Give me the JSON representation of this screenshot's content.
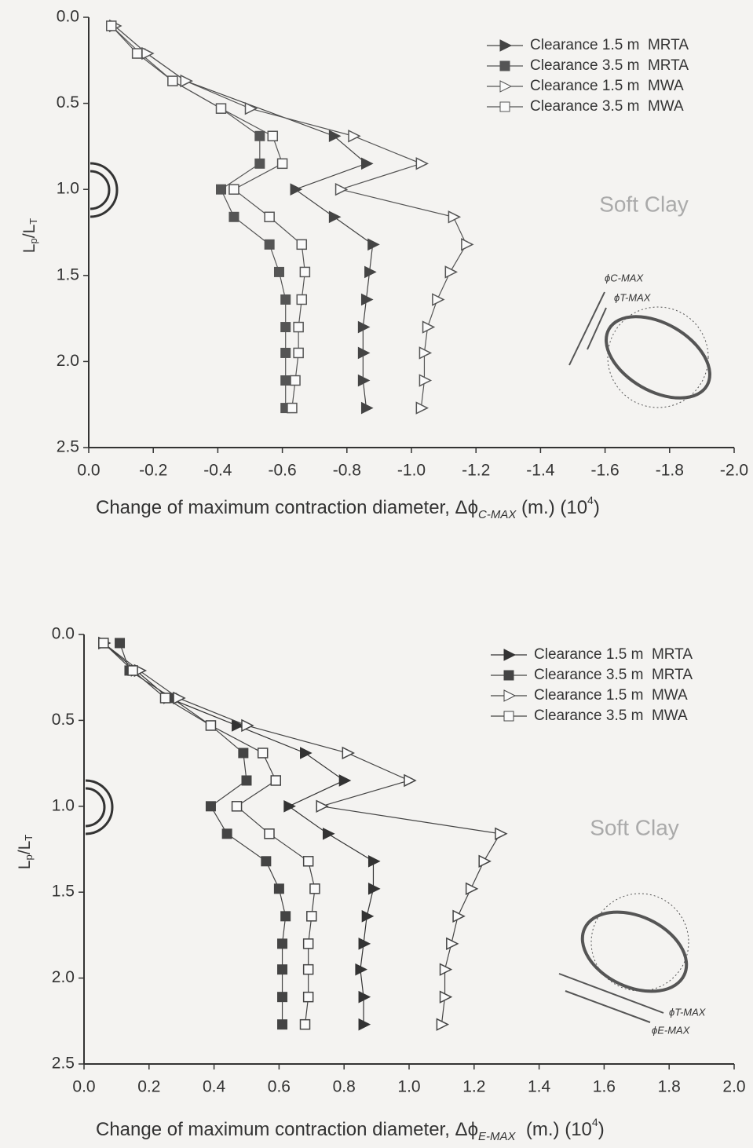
{
  "chart_data": [
    {
      "type": "line",
      "orientation": "horizontal",
      "xlabel": {
        "main": "Change of maximum contraction diameter, Δϕ",
        "sub": "C-MAX",
        "unit": " (m.) (10",
        "sup": "4",
        "end": ")"
      },
      "ylabel": {
        "main": "L",
        "sub": "p",
        "mid": "/L",
        "sub2": "T"
      },
      "annotation": "Soft Clay",
      "diagram_labels": [
        "ϕC-MAX",
        "ϕT-MAX"
      ],
      "xlim": [
        0,
        -2
      ],
      "xticks": [
        {
          "value": 0,
          "label": "0.0"
        },
        -0.2,
        -0.4,
        -0.6,
        -0.8,
        {
          "value": -1,
          "label": "-1.0"
        },
        -1.2,
        -1.4,
        -1.6,
        -1.8,
        {
          "value": -2,
          "label": "-2.0"
        }
      ],
      "ylim": [
        0,
        2.5
      ],
      "yticks": [
        {
          "value": 0,
          "label": "0.0"
        },
        0.5,
        {
          "value": 1,
          "label": "1.0"
        },
        1.5,
        {
          "value": 2,
          "label": "2.0"
        },
        2.5
      ],
      "legend": "upper right",
      "series": [
        {
          "name": "Clearance 1.5 m  MRTA",
          "color": "#444444",
          "marker": "triangle",
          "filled": true,
          "y": [
            0.05,
            0.21,
            0.37,
            0.69,
            0.85,
            1.0,
            1.16,
            1.32,
            1.48,
            1.64,
            1.8,
            1.95,
            2.11,
            2.27
          ],
          "values": [
            -0.08,
            -0.18,
            -0.3,
            -0.76,
            -0.86,
            -0.64,
            -0.76,
            -0.88,
            -0.87,
            -0.86,
            -0.85,
            -0.85,
            -0.85,
            -0.86
          ]
        },
        {
          "name": "Clearance 3.5 m  MRTA",
          "color": "#555555",
          "marker": "square",
          "filled": true,
          "y": [
            0.05,
            0.21,
            0.37,
            0.53,
            0.69,
            0.85,
            1.0,
            1.16,
            1.32,
            1.48,
            1.64,
            1.8,
            1.95,
            2.11,
            2.27
          ],
          "values": [
            -0.07,
            -0.16,
            -0.26,
            -0.41,
            -0.53,
            -0.53,
            -0.41,
            -0.45,
            -0.56,
            -0.59,
            -0.61,
            -0.61,
            -0.61,
            -0.61,
            -0.61
          ]
        },
        {
          "name": "Clearance 1.5 m  MWA",
          "color": "#555555",
          "marker": "triangle",
          "filled": false,
          "y": [
            0.05,
            0.21,
            0.37,
            0.53,
            0.69,
            0.85,
            1.0,
            1.16,
            1.32,
            1.48,
            1.64,
            1.8,
            1.95,
            2.11,
            2.27
          ],
          "values": [
            -0.08,
            -0.18,
            -0.3,
            -0.5,
            -0.82,
            -1.03,
            -0.78,
            -1.13,
            -1.17,
            -1.12,
            -1.08,
            -1.05,
            -1.04,
            -1.04,
            -1.03
          ]
        },
        {
          "name": "Clearance 3.5 m  MWA",
          "color": "#555555",
          "marker": "square",
          "filled": false,
          "y": [
            0.05,
            0.21,
            0.37,
            0.53,
            0.69,
            0.85,
            1.0,
            1.16,
            1.32,
            1.48,
            1.64,
            1.8,
            1.95,
            2.11,
            2.27
          ],
          "values": [
            -0.07,
            -0.15,
            -0.26,
            -0.41,
            -0.57,
            -0.6,
            -0.45,
            -0.56,
            -0.66,
            -0.67,
            -0.66,
            -0.65,
            -0.65,
            -0.64,
            -0.63
          ]
        }
      ]
    },
    {
      "type": "line",
      "orientation": "horizontal",
      "xlabel": {
        "main": "Change of maximum contraction diameter, Δϕ",
        "sub": "E-MAX",
        "unit": "  (m.) (10",
        "sup": "4",
        "end": ")"
      },
      "ylabel": {
        "main": "L",
        "sub": "p",
        "mid": "/L",
        "sub2": "T"
      },
      "annotation": "Soft Clay",
      "diagram_labels": [
        "ϕT-MAX",
        "ϕE-MAX"
      ],
      "xlim": [
        0,
        2
      ],
      "xticks": [
        {
          "value": 0,
          "label": "0.0"
        },
        0.2,
        0.4,
        0.6,
        0.8,
        {
          "value": 1,
          "label": "1.0"
        },
        1.2,
        1.4,
        1.6,
        1.8,
        {
          "value": 2,
          "label": "2.0"
        }
      ],
      "ylim": [
        0,
        2.5
      ],
      "yticks": [
        {
          "value": 0,
          "label": "0.0"
        },
        0.5,
        {
          "value": 1,
          "label": "1.0"
        },
        1.5,
        {
          "value": 2,
          "label": "2.0"
        },
        2.5
      ],
      "legend": "upper right",
      "series": [
        {
          "name": "Clearance 1.5 m  MRTA",
          "color": "#333333",
          "marker": "triangle",
          "filled": true,
          "y": [
            0.05,
            0.21,
            0.37,
            0.53,
            0.69,
            0.85,
            1.0,
            1.16,
            1.32,
            1.48,
            1.64,
            1.8,
            1.95,
            2.11,
            2.27
          ],
          "values": [
            0.06,
            0.16,
            0.26,
            0.47,
            0.68,
            0.8,
            0.63,
            0.75,
            0.89,
            0.89,
            0.87,
            0.86,
            0.85,
            0.86,
            0.86
          ]
        },
        {
          "name": "Clearance 3.5 m  MRTA",
          "color": "#444444",
          "marker": "square",
          "filled": true,
          "y": [
            0.05,
            0.21,
            0.37,
            0.53,
            0.69,
            0.85,
            1.0,
            1.16,
            1.32,
            1.48,
            1.64,
            1.8,
            1.95,
            2.11,
            2.27
          ],
          "values": [
            0.11,
            0.14,
            0.27,
            0.39,
            0.49,
            0.5,
            0.39,
            0.44,
            0.56,
            0.6,
            0.62,
            0.61,
            0.61,
            0.61,
            0.61
          ]
        },
        {
          "name": "Clearance 1.5 m  MWA",
          "color": "#444444",
          "marker": "triangle",
          "filled": false,
          "y": [
            0.05,
            0.21,
            0.37,
            0.53,
            0.69,
            0.85,
            1.0,
            1.16,
            1.32,
            1.48,
            1.64,
            1.8,
            1.95,
            2.11,
            2.27
          ],
          "values": [
            0.06,
            0.17,
            0.29,
            0.5,
            0.81,
            1.0,
            0.73,
            1.28,
            1.23,
            1.19,
            1.15,
            1.13,
            1.11,
            1.11,
            1.1
          ]
        },
        {
          "name": "Clearance 3.5 m  MWA",
          "color": "#444444",
          "marker": "square",
          "filled": false,
          "y": [
            0.05,
            0.21,
            0.37,
            0.53,
            0.69,
            0.85,
            1.0,
            1.16,
            1.32,
            1.48,
            1.64,
            1.8,
            1.95,
            2.11,
            2.27
          ],
          "values": [
            0.06,
            0.15,
            0.25,
            0.39,
            0.55,
            0.59,
            0.47,
            0.57,
            0.69,
            0.71,
            0.7,
            0.69,
            0.69,
            0.69,
            0.68
          ]
        }
      ]
    }
  ]
}
